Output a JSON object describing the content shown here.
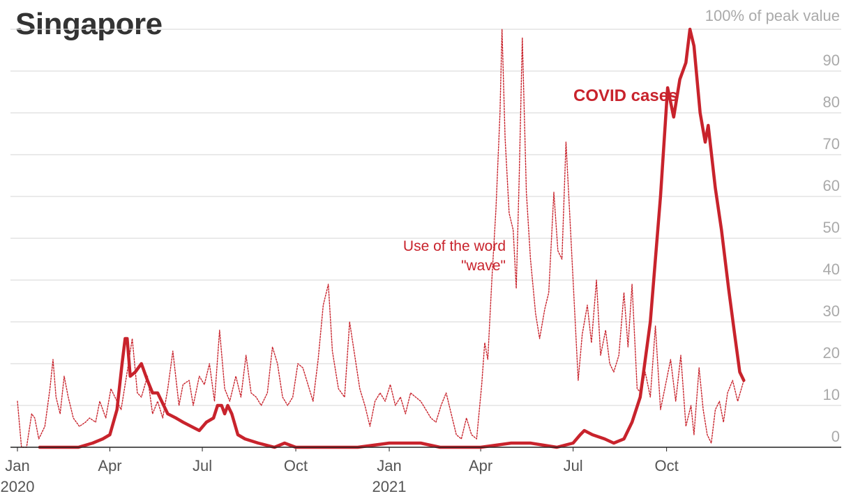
{
  "title": "Singapore",
  "colors": {
    "series": "#c8232c",
    "grid": "#dddddd",
    "axis": "#222222",
    "tick_text": "#aaaaaa",
    "month_text": "#555555"
  },
  "chart_data": {
    "type": "line",
    "title": "Singapore",
    "top_label": "100% of peak value",
    "ylim": [
      0,
      100
    ],
    "y_ticks": [
      0,
      10,
      20,
      30,
      40,
      50,
      60,
      70,
      80,
      90
    ],
    "x_ticks": [
      {
        "date": "2020-01-01",
        "label": "Jan",
        "year": "2020"
      },
      {
        "date": "2020-04-01",
        "label": "Apr",
        "year": ""
      },
      {
        "date": "2020-07-01",
        "label": "Jul",
        "year": ""
      },
      {
        "date": "2020-10-01",
        "label": "Oct",
        "year": ""
      },
      {
        "date": "2021-01-01",
        "label": "Jan",
        "year": "2021"
      },
      {
        "date": "2021-04-01",
        "label": "Apr",
        "year": ""
      },
      {
        "date": "2021-07-01",
        "label": "Jul",
        "year": ""
      },
      {
        "date": "2021-10-01",
        "label": "Oct",
        "year": ""
      }
    ],
    "xlim": [
      "2020-01-01",
      "2022-01-15"
    ],
    "grid": true,
    "y_axis_position": "right",
    "series": [
      {
        "name": "COVID cases",
        "style": "solid",
        "points": [
          [
            "2020-01-23",
            0
          ],
          [
            "2020-02-15",
            0
          ],
          [
            "2020-03-01",
            0
          ],
          [
            "2020-03-15",
            1
          ],
          [
            "2020-03-25",
            2
          ],
          [
            "2020-04-01",
            3
          ],
          [
            "2020-04-08",
            9
          ],
          [
            "2020-04-13",
            20
          ],
          [
            "2020-04-16",
            26
          ],
          [
            "2020-04-18",
            26
          ],
          [
            "2020-04-21",
            17
          ],
          [
            "2020-04-26",
            18
          ],
          [
            "2020-05-02",
            20
          ],
          [
            "2020-05-08",
            16
          ],
          [
            "2020-05-13",
            13
          ],
          [
            "2020-05-18",
            13
          ],
          [
            "2020-05-22",
            11
          ],
          [
            "2020-05-28",
            8
          ],
          [
            "2020-06-05",
            7
          ],
          [
            "2020-06-12",
            6
          ],
          [
            "2020-06-20",
            5
          ],
          [
            "2020-06-28",
            4
          ],
          [
            "2020-07-05",
            6
          ],
          [
            "2020-07-12",
            7
          ],
          [
            "2020-07-16",
            10
          ],
          [
            "2020-07-20",
            10
          ],
          [
            "2020-07-23",
            8
          ],
          [
            "2020-07-26",
            10
          ],
          [
            "2020-07-30",
            8
          ],
          [
            "2020-08-05",
            3
          ],
          [
            "2020-08-12",
            2
          ],
          [
            "2020-08-25",
            1
          ],
          [
            "2020-09-10",
            0
          ],
          [
            "2020-09-20",
            1
          ],
          [
            "2020-10-01",
            0
          ],
          [
            "2020-11-01",
            0
          ],
          [
            "2020-12-01",
            0
          ],
          [
            "2021-01-01",
            1
          ],
          [
            "2021-02-01",
            1
          ],
          [
            "2021-02-20",
            0
          ],
          [
            "2021-03-15",
            0
          ],
          [
            "2021-04-01",
            0
          ],
          [
            "2021-05-01",
            1
          ],
          [
            "2021-05-20",
            1
          ],
          [
            "2021-06-15",
            0
          ],
          [
            "2021-07-01",
            1
          ],
          [
            "2021-07-08",
            3
          ],
          [
            "2021-07-12",
            4
          ],
          [
            "2021-07-20",
            3
          ],
          [
            "2021-08-01",
            2
          ],
          [
            "2021-08-10",
            1
          ],
          [
            "2021-08-20",
            2
          ],
          [
            "2021-08-28",
            6
          ],
          [
            "2021-09-05",
            12
          ],
          [
            "2021-09-15",
            30
          ],
          [
            "2021-09-25",
            60
          ],
          [
            "2021-10-02",
            86
          ],
          [
            "2021-10-08",
            79
          ],
          [
            "2021-10-14",
            88
          ],
          [
            "2021-10-20",
            92
          ],
          [
            "2021-10-24",
            100
          ],
          [
            "2021-10-28",
            96
          ],
          [
            "2021-11-03",
            80
          ],
          [
            "2021-11-08",
            73
          ],
          [
            "2021-11-11",
            77
          ],
          [
            "2021-11-18",
            62
          ],
          [
            "2021-11-24",
            52
          ],
          [
            "2021-12-01",
            38
          ],
          [
            "2021-12-07",
            27
          ],
          [
            "2021-12-12",
            18
          ],
          [
            "2021-12-16",
            16
          ]
        ]
      },
      {
        "name": "Use of the word \"wave\"",
        "label_lines": [
          "Use of the word",
          "\"wave\""
        ],
        "style": "dotted",
        "points": [
          [
            "2020-01-01",
            11
          ],
          [
            "2020-01-05",
            0
          ],
          [
            "2020-01-10",
            0
          ],
          [
            "2020-01-15",
            8
          ],
          [
            "2020-01-18",
            7
          ],
          [
            "2020-01-22",
            2
          ],
          [
            "2020-01-28",
            5
          ],
          [
            "2020-02-02",
            14
          ],
          [
            "2020-02-05",
            21
          ],
          [
            "2020-02-08",
            12
          ],
          [
            "2020-02-12",
            8
          ],
          [
            "2020-02-16",
            17
          ],
          [
            "2020-02-20",
            12
          ],
          [
            "2020-02-25",
            7
          ],
          [
            "2020-03-02",
            5
          ],
          [
            "2020-03-08",
            6
          ],
          [
            "2020-03-12",
            7
          ],
          [
            "2020-03-18",
            6
          ],
          [
            "2020-03-22",
            11
          ],
          [
            "2020-03-28",
            7
          ],
          [
            "2020-04-02",
            14
          ],
          [
            "2020-04-06",
            12
          ],
          [
            "2020-04-12",
            9
          ],
          [
            "2020-04-18",
            18
          ],
          [
            "2020-04-23",
            26
          ],
          [
            "2020-04-28",
            13
          ],
          [
            "2020-05-02",
            12
          ],
          [
            "2020-05-08",
            17
          ],
          [
            "2020-05-13",
            8
          ],
          [
            "2020-05-18",
            11
          ],
          [
            "2020-05-23",
            7
          ],
          [
            "2020-05-28",
            14
          ],
          [
            "2020-06-02",
            23
          ],
          [
            "2020-06-08",
            10
          ],
          [
            "2020-06-12",
            15
          ],
          [
            "2020-06-18",
            16
          ],
          [
            "2020-06-22",
            10
          ],
          [
            "2020-06-28",
            17
          ],
          [
            "2020-07-03",
            15
          ],
          [
            "2020-07-08",
            20
          ],
          [
            "2020-07-13",
            11
          ],
          [
            "2020-07-18",
            28
          ],
          [
            "2020-07-23",
            14
          ],
          [
            "2020-07-28",
            11
          ],
          [
            "2020-08-03",
            17
          ],
          [
            "2020-08-08",
            12
          ],
          [
            "2020-08-13",
            22
          ],
          [
            "2020-08-18",
            13
          ],
          [
            "2020-08-23",
            12
          ],
          [
            "2020-08-28",
            10
          ],
          [
            "2020-09-03",
            13
          ],
          [
            "2020-09-08",
            24
          ],
          [
            "2020-09-13",
            20
          ],
          [
            "2020-09-18",
            12
          ],
          [
            "2020-09-23",
            10
          ],
          [
            "2020-09-28",
            12
          ],
          [
            "2020-10-03",
            20
          ],
          [
            "2020-10-08",
            19
          ],
          [
            "2020-10-13",
            15
          ],
          [
            "2020-10-18",
            11
          ],
          [
            "2020-10-23",
            21
          ],
          [
            "2020-10-28",
            34
          ],
          [
            "2020-11-02",
            39
          ],
          [
            "2020-11-06",
            23
          ],
          [
            "2020-11-12",
            14
          ],
          [
            "2020-11-18",
            12
          ],
          [
            "2020-11-23",
            30
          ],
          [
            "2020-11-28",
            22
          ],
          [
            "2020-12-03",
            14
          ],
          [
            "2020-12-08",
            10
          ],
          [
            "2020-12-13",
            5
          ],
          [
            "2020-12-18",
            11
          ],
          [
            "2020-12-23",
            13
          ],
          [
            "2020-12-28",
            11
          ],
          [
            "2021-01-02",
            15
          ],
          [
            "2021-01-07",
            10
          ],
          [
            "2021-01-12",
            12
          ],
          [
            "2021-01-17",
            8
          ],
          [
            "2021-01-22",
            13
          ],
          [
            "2021-01-27",
            12
          ],
          [
            "2021-02-01",
            11
          ],
          [
            "2021-02-06",
            9
          ],
          [
            "2021-02-11",
            7
          ],
          [
            "2021-02-16",
            6
          ],
          [
            "2021-02-21",
            10
          ],
          [
            "2021-02-26",
            13
          ],
          [
            "2021-03-03",
            8
          ],
          [
            "2021-03-08",
            3
          ],
          [
            "2021-03-13",
            2
          ],
          [
            "2021-03-18",
            7
          ],
          [
            "2021-03-23",
            3
          ],
          [
            "2021-03-28",
            2
          ],
          [
            "2021-04-02",
            15
          ],
          [
            "2021-04-05",
            25
          ],
          [
            "2021-04-08",
            21
          ],
          [
            "2021-04-12",
            40
          ],
          [
            "2021-04-16",
            57
          ],
          [
            "2021-04-20",
            80
          ],
          [
            "2021-04-22",
            100
          ],
          [
            "2021-04-25",
            74
          ],
          [
            "2021-04-29",
            56
          ],
          [
            "2021-05-03",
            52
          ],
          [
            "2021-05-06",
            38
          ],
          [
            "2021-05-09",
            65
          ],
          [
            "2021-05-12",
            98
          ],
          [
            "2021-05-16",
            61
          ],
          [
            "2021-05-20",
            45
          ],
          [
            "2021-05-25",
            32
          ],
          [
            "2021-05-29",
            26
          ],
          [
            "2021-06-03",
            33
          ],
          [
            "2021-06-07",
            37
          ],
          [
            "2021-06-12",
            61
          ],
          [
            "2021-06-16",
            47
          ],
          [
            "2021-06-20",
            45
          ],
          [
            "2021-06-24",
            73
          ],
          [
            "2021-06-28",
            54
          ],
          [
            "2021-07-02",
            35
          ],
          [
            "2021-07-06",
            16
          ],
          [
            "2021-07-10",
            27
          ],
          [
            "2021-07-15",
            34
          ],
          [
            "2021-07-19",
            25
          ],
          [
            "2021-07-24",
            40
          ],
          [
            "2021-07-28",
            22
          ],
          [
            "2021-08-02",
            28
          ],
          [
            "2021-08-06",
            20
          ],
          [
            "2021-08-10",
            18
          ],
          [
            "2021-08-15",
            22
          ],
          [
            "2021-08-20",
            37
          ],
          [
            "2021-08-24",
            24
          ],
          [
            "2021-08-28",
            39
          ],
          [
            "2021-09-02",
            14
          ],
          [
            "2021-09-06",
            13
          ],
          [
            "2021-09-10",
            18
          ],
          [
            "2021-09-15",
            12
          ],
          [
            "2021-09-20",
            29
          ],
          [
            "2021-09-25",
            9
          ],
          [
            "2021-09-30",
            15
          ],
          [
            "2021-10-05",
            21
          ],
          [
            "2021-10-10",
            11
          ],
          [
            "2021-10-15",
            22
          ],
          [
            "2021-10-20",
            5
          ],
          [
            "2021-10-25",
            10
          ],
          [
            "2021-10-28",
            3
          ],
          [
            "2021-11-02",
            19
          ],
          [
            "2021-11-06",
            9
          ],
          [
            "2021-11-10",
            3
          ],
          [
            "2021-11-14",
            1
          ],
          [
            "2021-11-18",
            9
          ],
          [
            "2021-11-22",
            11
          ],
          [
            "2021-11-26",
            6
          ],
          [
            "2021-11-30",
            13
          ],
          [
            "2021-12-05",
            16
          ],
          [
            "2021-12-10",
            11
          ],
          [
            "2021-12-16",
            16
          ]
        ]
      }
    ]
  }
}
